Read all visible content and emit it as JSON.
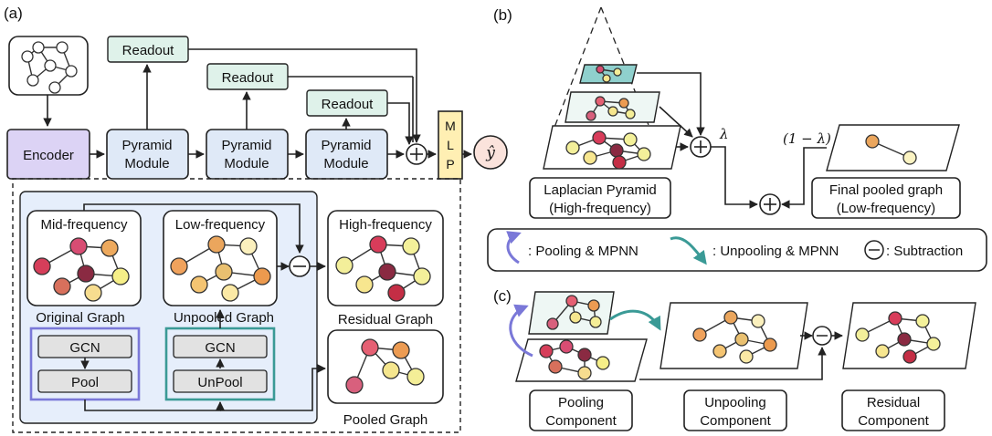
{
  "panels": {
    "a": "(a)",
    "b": "(b)",
    "c": "(c)"
  },
  "panel_a": {
    "encoder": "Encoder",
    "pyramid_module_line1": "Pyramid",
    "pyramid_module_line2": "Module",
    "readout": "Readout",
    "mlp": [
      "M",
      "L",
      "P"
    ],
    "output": "ŷ",
    "mid_frequency": "Mid-frequency",
    "low_frequency": "Low-frequency",
    "high_frequency": "High-frequency",
    "original_graph": "Original Graph",
    "unpooled_graph": "Unpooled Graph",
    "residual_graph": "Residual Graph",
    "pooled_graph": "Pooled Graph",
    "gcn": "GCN",
    "pool": "Pool",
    "unpool": "UnPool"
  },
  "panel_b": {
    "lambda": "λ",
    "one_minus_lambda": "(1 − λ)",
    "laplacian_line1": "Laplacian Pyramid",
    "laplacian_line2": "(High-frequency)",
    "final_line1": "Final pooled graph",
    "final_line2": "(Low-frequency)",
    "legend_pooling": ": Pooling & MPNN",
    "legend_unpooling": ": Unpooling & MPNN",
    "legend_subtraction": ": Subtraction"
  },
  "panel_c": {
    "pooling_line1": "Pooling",
    "pooling_line2": "Component",
    "unpooling_line1": "Unpooling",
    "unpooling_line2": "Component",
    "residual_line1": "Residual",
    "residual_line2": "Component"
  },
  "colors": {
    "encoder_fill": "#dcd3f5",
    "module_fill": "#dfe9f7",
    "readout_fill": "#dff2ea",
    "mlp_fill": "#ffefb3",
    "output_fill": "#fbe3dc",
    "panel_fill": "#e6eefb",
    "pool_border": "#7a78d8",
    "unpool_border": "#3a9a96",
    "arrow_purple": "#7a78d8",
    "arrow_teal": "#3a9a96"
  }
}
